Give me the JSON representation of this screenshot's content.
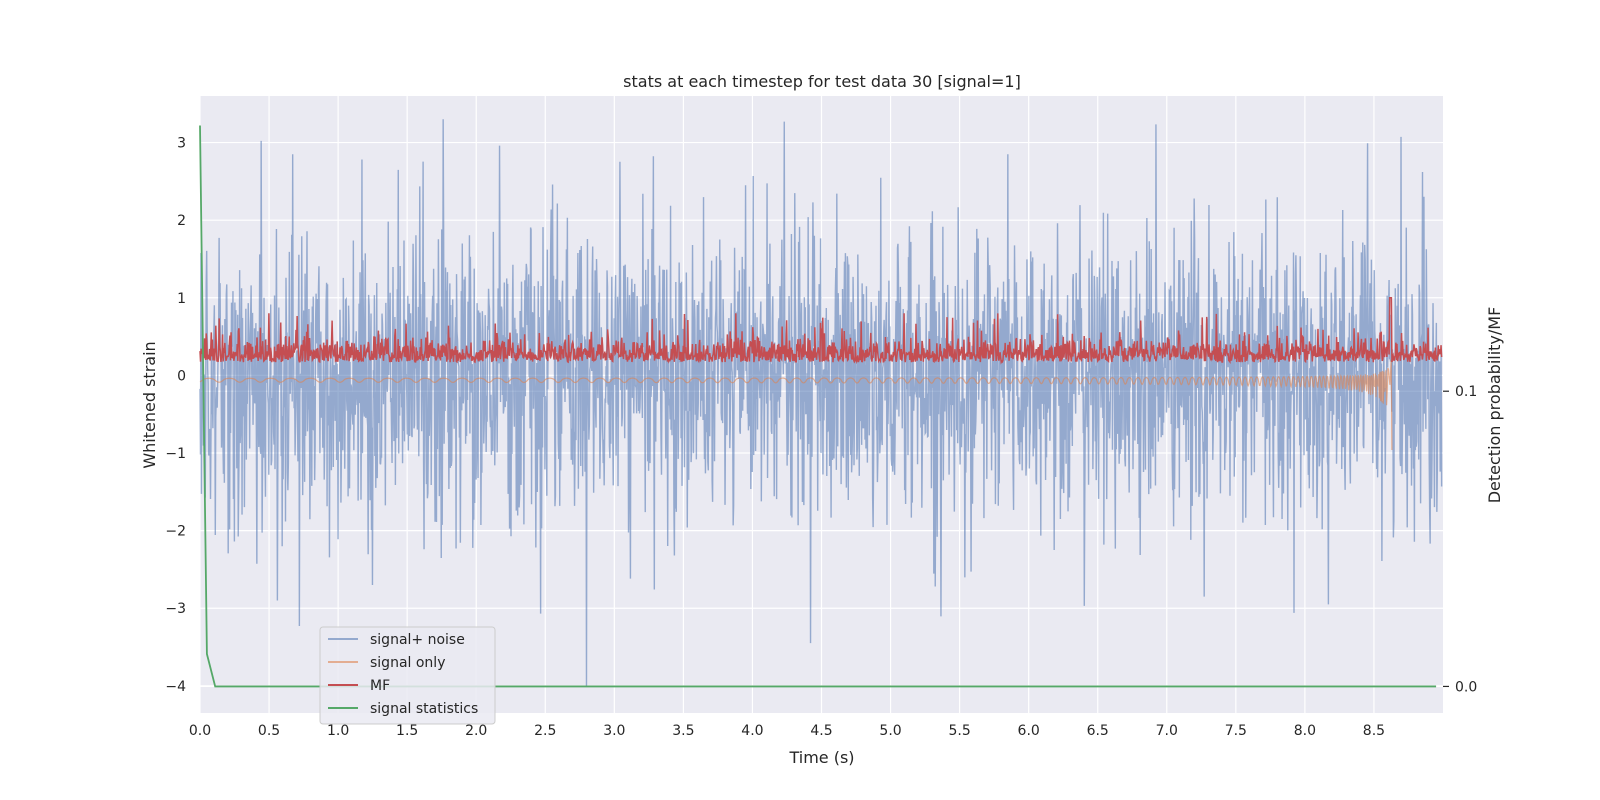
{
  "chart_data": {
    "type": "line",
    "title": "stats at each timestep for test data 30 [signal=1]",
    "xlabel": "Time (s)",
    "ylabel": "Whitened strain",
    "ylabel_right": "Detection probability/MF",
    "xlim": [
      0,
      9.0
    ],
    "ylim": [
      -4.35,
      3.6
    ],
    "ylim_right": [
      -0.009,
      0.2
    ],
    "x_ticks": [
      0.0,
      0.5,
      1.0,
      1.5,
      2.0,
      2.5,
      3.0,
      3.5,
      4.0,
      4.5,
      5.0,
      5.5,
      6.0,
      6.5,
      7.0,
      7.5,
      8.0,
      8.5
    ],
    "x_tick_labels": [
      "0.0",
      "0.5",
      "1.0",
      "1.5",
      "2.0",
      "2.5",
      "3.0",
      "3.5",
      "4.0",
      "4.5",
      "5.0",
      "5.5",
      "6.0",
      "6.5",
      "7.0",
      "7.5",
      "8.0",
      "8.5"
    ],
    "y_ticks": [
      -4,
      -3,
      -2,
      -1,
      0,
      1,
      2,
      3
    ],
    "y_tick_labels": [
      "−4",
      "−3",
      "−2",
      "−1",
      "0",
      "1",
      "2",
      "3"
    ],
    "y_ticks_right": [
      0.0,
      0.1
    ],
    "y_tick_labels_right": [
      "0.0",
      "0.1"
    ],
    "grid": true,
    "legend_position": "lower-left",
    "series": [
      {
        "name": "signal+ noise",
        "axis": "left",
        "color": "#4c72b0",
        "kind": "noise",
        "amplitude_typical": 1.0,
        "peaks": [
          {
            "x": 0.56,
            "y": 3.05
          },
          {
            "x": 0.67,
            "y": 2.85
          },
          {
            "x": 4.23,
            "y": 3.27
          },
          {
            "x": 5.85,
            "y": 2.85
          },
          {
            "x": 8.85,
            "y": 2.62
          },
          {
            "x": 2.8,
            "y": -4.0
          },
          {
            "x": 4.42,
            "y": -3.45
          },
          {
            "x": 0.56,
            "y": -2.9
          },
          {
            "x": 1.25,
            "y": -2.7
          },
          {
            "x": 8.17,
            "y": -2.95
          },
          {
            "x": 7.27,
            "y": -2.85
          }
        ]
      },
      {
        "name": "signal only",
        "axis": "left",
        "color": "#dd8452",
        "kind": "chirp",
        "t_merger": 8.63,
        "peak_min": -0.9,
        "peak_max": 0.35
      },
      {
        "name": "MF",
        "axis": "left",
        "color": "#c44e52",
        "kind": "mf",
        "baseline": 0.25,
        "peaks": [
          {
            "x": 8.62,
            "y": 1.0
          }
        ]
      },
      {
        "name": "signal statistics",
        "axis": "right",
        "color": "#55a868",
        "kind": "line",
        "x": [
          0.0,
          0.05,
          0.11,
          0.2,
          1.0,
          2.0,
          3.0,
          4.0,
          5.0,
          6.0,
          7.0,
          8.0,
          8.95
        ],
        "y": [
          0.19,
          0.011,
          0.0,
          0.0,
          0.0,
          0.0,
          0.0,
          0.0,
          0.0,
          0.0,
          0.0,
          0.0,
          0.0
        ]
      }
    ]
  }
}
